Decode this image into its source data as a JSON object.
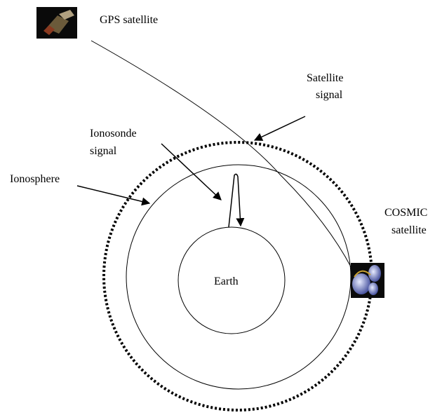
{
  "labels": {
    "gps_satellite": "GPS satellite",
    "satellite_signal": [
      "Satellite",
      "signal"
    ],
    "ionosonde_signal": [
      "Ionosonde",
      "signal"
    ],
    "ionosphere": "Ionosphere",
    "cosmic_satellite": [
      "COSMIC",
      "satellite"
    ],
    "earth": "Earth"
  }
}
